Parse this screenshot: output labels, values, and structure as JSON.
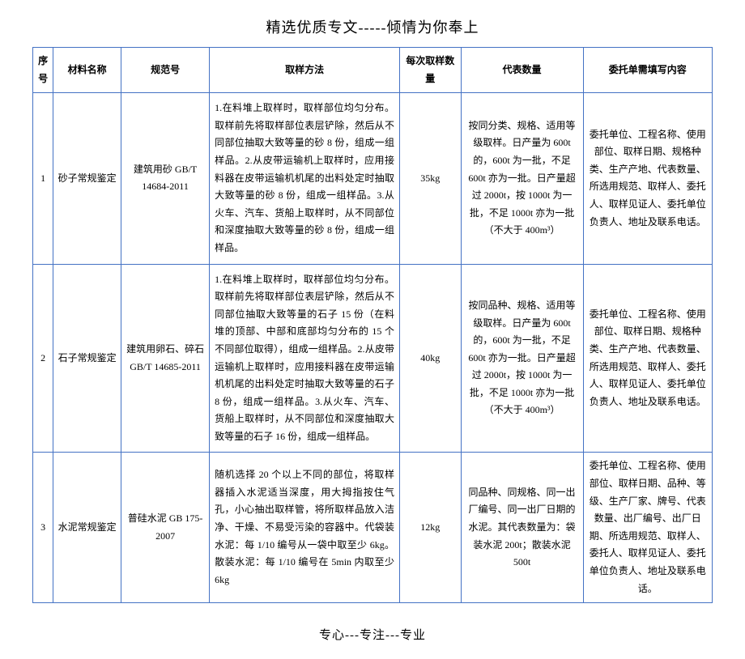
{
  "page_title": "精选优质专文-----倾情为你奉上",
  "footer": "专心---专注---专业",
  "columns": [
    "序号",
    "材料名称",
    "规范号",
    "取样方法",
    "每次取样数量",
    "代表数量",
    "委托单需填写内容"
  ],
  "rows": [
    {
      "seq": "1",
      "name": "砂子常规鉴定",
      "spec": "建筑用砂 GB/T 14684-2011",
      "method": "1.在料堆上取样时，取样部位均匀分布。取样前先将取样部位表层铲除，然后从不同部位抽取大致等量的砂 8 份，组成一组样品。2.从皮带运输机上取样时，应用接料器在皮带运输机机尾的出料处定时抽取大致等量的砂 8 份，组成一组样品。3.从火车、汽车、货船上取样时，从不同部位和深度抽取大致等量的砂 8 份，组成一组样品。",
      "qty": "35kg",
      "rep": "按同分类、规格、适用等级取样。日产量为 600t 的，600t 为一批，不足 600t 亦为一批。日产量超过 2000t，按 1000t 为一批，不足 1000t 亦为一批（不大于 400m³）",
      "form": "委托单位、工程名称、使用部位、取样日期、规格种类、生产产地、代表数量、所选用规范、取样人、委托人、取样见证人、委托单位负责人、地址及联系电话。"
    },
    {
      "seq": "2",
      "name": "石子常规鉴定",
      "spec": "建筑用卵石、碎石 GB/T 14685-2011",
      "method": "1.在料堆上取样时，取样部位均匀分布。取样前先将取样部位表层铲除，然后从不同部位抽取大致等量的石子 15 份（在料堆的顶部、中部和底部均匀分布的 15 个不同部位取得），组成一组样品。2.从皮带运输机上取样时，应用接料器在皮带运输机机尾的出料处定时抽取大致等量的石子 8 份，组成一组样品。3.从火车、汽车、货船上取样时，从不同部位和深度抽取大致等量的石子 16 份，组成一组样品。",
      "qty": "40kg",
      "rep": "按同品种、规格、适用等级取样。日产量为 600t 的，600t 为一批，不足 600t 亦为一批。日产量超过 2000t，按 1000t 为一批，不足 1000t 亦为一批（不大于 400m³）",
      "form": "委托单位、工程名称、使用部位、取样日期、规格种类、生产产地、代表数量、所选用规范、取样人、委托人、取样见证人、委托单位负责人、地址及联系电话。"
    },
    {
      "seq": "3",
      "name": "水泥常规鉴定",
      "spec": "普硅水泥 GB 175-2007",
      "method": "随机选择 20 个以上不同的部位，将取样器插入水泥适当深度，用大拇指按住气孔，小心抽出取样管，将所取样品放入洁净、干燥、不易受污染的容器中。代袋装水泥：每 1/10 编号从一袋中取至少 6kg。散装水泥：每 1/10 编号在 5min 内取至少 6kg",
      "qty": "12kg",
      "rep": "同品种、同规格、同一出厂编号、同一出厂日期的水泥。其代表数量为：袋装水泥 200t；散装水泥 500t",
      "form": "委托单位、工程名称、使用部位、取样日期、品种、等级、生产厂家、牌号、代表数量、出厂编号、出厂日期、所选用规范、取样人、委托人、取样见证人、委托单位负责人、地址及联系电话。"
    }
  ]
}
